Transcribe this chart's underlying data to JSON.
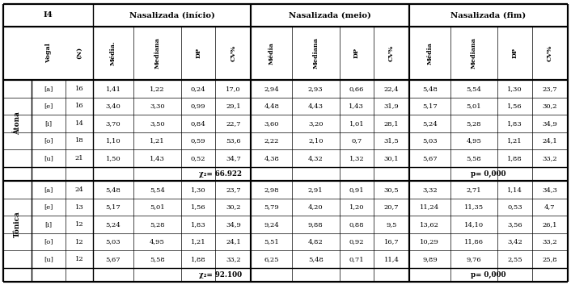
{
  "atona_rows": [
    [
      "[a]",
      "16",
      "1,41",
      "1,22",
      "0,24",
      "17,0",
      "2,94",
      "2,93",
      "0,66",
      "22,4",
      "5,48",
      "5,54",
      "1,30",
      "23,7"
    ],
    [
      "[e]",
      "16",
      "3,40",
      "3,30",
      "0,99",
      "29,1",
      "4,48",
      "4,43",
      "1,43",
      "31,9",
      "5,17",
      "5,01",
      "1,56",
      "30,2"
    ],
    [
      "[i]",
      "14",
      "3,70",
      "3,50",
      "0,84",
      "22,7",
      "3,60",
      "3,20",
      "1,01",
      "28,1",
      "5,24",
      "5,28",
      "1,83",
      "34,9"
    ],
    [
      "[o]",
      "18",
      "1,10",
      "1,21",
      "0,59",
      "53,6",
      "2,22",
      "2,10",
      "0,7",
      "31,5",
      "5,03",
      "4,95",
      "1,21",
      "24,1"
    ],
    [
      "[u]",
      "21",
      "1,50",
      "1,43",
      "0,52",
      "34,7",
      "4,38",
      "4,32",
      "1,32",
      "30,1",
      "5,67",
      "5,58",
      "1,88",
      "33,2"
    ]
  ],
  "tonica_rows": [
    [
      "[a]",
      "24",
      "5,48",
      "5,54",
      "1,30",
      "23,7",
      "2,98",
      "2,91",
      "0,91",
      "30,5",
      "3,32",
      "2,71",
      "1,14",
      "34,3"
    ],
    [
      "[e]",
      "13",
      "5,17",
      "5,01",
      "1,56",
      "30,2",
      "5,79",
      "4,20",
      "1,20",
      "20,7",
      "11,24",
      "11,35",
      "0,53",
      "4,7"
    ],
    [
      "[i]",
      "12",
      "5,24",
      "5,28",
      "1,83",
      "34,9",
      "9,24",
      "9,88",
      "0,88",
      "9,5",
      "13,62",
      "14,10",
      "3,56",
      "26,1"
    ],
    [
      "[o]",
      "12",
      "5,03",
      "4,95",
      "1,21",
      "24,1",
      "5,51",
      "4,82",
      "0,92",
      "16,7",
      "10,29",
      "11,86",
      "3,42",
      "33,2"
    ],
    [
      "[u]",
      "12",
      "5,67",
      "5,58",
      "1,88",
      "33,2",
      "6,25",
      "5,48",
      "0,71",
      "11,4",
      "9,89",
      "9,76",
      "2,55",
      "25,8"
    ]
  ],
  "atona_chi2": "χ₂= 66.922",
  "atona_p": "p= 0,000",
  "tonica_chi2": "χ₂= 92.100",
  "tonica_p": "p= 0,000",
  "header_top": [
    "I4",
    "Nasalizada (início)",
    "Nasalizada (meio)",
    "Nasalizada (fim)"
  ],
  "subheaders": [
    "Vogal",
    "(N)",
    "Média.",
    "Mediana",
    "DP",
    "CV%",
    "Média",
    "Mediana",
    "DP",
    "CV%",
    "Média",
    "Mediana",
    "DP",
    "CV%"
  ],
  "section_atona": "Átona",
  "section_tonica": "Tônica",
  "bg": "#ffffff",
  "lw_thin": 0.5,
  "lw_mid": 1.0,
  "lw_thick": 1.6,
  "data_fs": 6.0,
  "header_fs": 7.2,
  "subheader_fs": 5.8,
  "section_fs": 6.3
}
